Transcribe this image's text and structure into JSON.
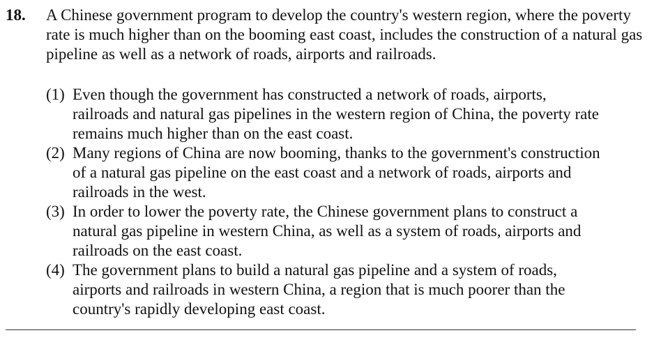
{
  "question": {
    "number": "18.",
    "stem": "A Chinese government program to develop the country's western region, where the poverty rate is much higher than on the booming east coast, includes the construction of a natural gas pipeline as well as a network of roads, airports and railroads.",
    "options": [
      {
        "num": "(1)",
        "text": "Even though the government has constructed a network of roads, airports, railroads and natural gas pipelines in the western region of China, the poverty rate remains much higher than on the east coast."
      },
      {
        "num": "(2)",
        "text": "Many regions of China are now booming, thanks to the government's construction of a natural gas pipeline on the east coast and a network of roads, airports and railroads in the west."
      },
      {
        "num": "(3)",
        "text": "In order to lower the poverty rate, the Chinese government plans to construct a natural gas pipeline in western China, as well as a system of roads, airports and railroads on the east coast."
      },
      {
        "num": "(4)",
        "text": "The government plans to build a natural gas pipeline and a system of roads, airports and railroads in western China, a region that is much poorer than the country's rapidly developing east coast."
      }
    ]
  }
}
